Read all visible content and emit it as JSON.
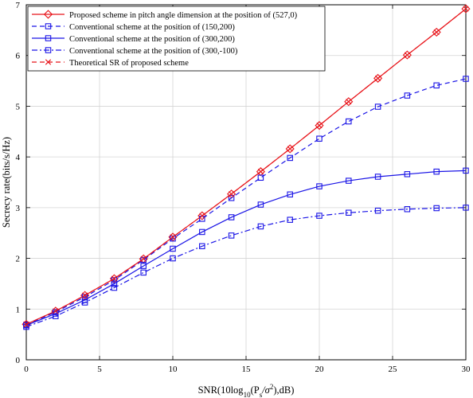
{
  "chart_data": {
    "type": "line",
    "xlabel_parts": [
      "SNR(10log",
      "10",
      "(P",
      "s",
      "/σ",
      "2",
      "),dB)"
    ],
    "ylabel": "Secrecy rate(bits/s/Hz)",
    "xlim": [
      0,
      30
    ],
    "ylim": [
      0,
      7
    ],
    "xticks": [
      0,
      5,
      10,
      15,
      20,
      25,
      30
    ],
    "yticks": [
      0,
      1,
      2,
      3,
      4,
      5,
      6,
      7
    ],
    "grid": true,
    "legend_position": "top-left",
    "x": [
      0,
      2,
      4,
      6,
      8,
      10,
      12,
      14,
      16,
      18,
      20,
      22,
      24,
      26,
      28,
      30
    ],
    "series": [
      {
        "name": "Proposed scheme in pitch angle dimension at the position of (527,0)",
        "color": "#e8141a",
        "dash": "solid",
        "marker": "diamond",
        "values": [
          0.7,
          0.96,
          1.27,
          1.6,
          1.99,
          2.42,
          2.84,
          3.27,
          3.71,
          4.16,
          4.62,
          5.09,
          5.55,
          6.01,
          6.46,
          6.92
        ]
      },
      {
        "name": "Conventional scheme at the position of (150,200)",
        "color": "#1a14e6",
        "dash": "dashed",
        "marker": "square",
        "values": [
          0.69,
          0.94,
          1.24,
          1.57,
          1.97,
          2.39,
          2.78,
          3.19,
          3.59,
          3.98,
          4.36,
          4.7,
          4.99,
          5.21,
          5.41,
          5.54
        ]
      },
      {
        "name": "Conventional scheme at the position of (300,200)",
        "color": "#1a14e6",
        "dash": "solid",
        "marker": "square",
        "values": [
          0.68,
          0.91,
          1.18,
          1.5,
          1.85,
          2.19,
          2.52,
          2.81,
          3.06,
          3.26,
          3.42,
          3.53,
          3.61,
          3.66,
          3.71,
          3.73
        ]
      },
      {
        "name": "Conventional scheme at the position of (300,-100)",
        "color": "#1a14e6",
        "dash": "dashdot",
        "marker": "square",
        "values": [
          0.65,
          0.86,
          1.13,
          1.42,
          1.72,
          2.0,
          2.24,
          2.45,
          2.63,
          2.76,
          2.84,
          2.9,
          2.94,
          2.97,
          2.99,
          3.0
        ]
      },
      {
        "name": "Theoretical SR of proposed scheme",
        "color": "#e8141a",
        "dash": "dashed",
        "marker": "x",
        "values": [
          0.7,
          0.96,
          1.27,
          1.6,
          1.99,
          2.42,
          2.84,
          3.27,
          3.71,
          4.16,
          4.62,
          5.09,
          5.55,
          6.01,
          6.46,
          6.92
        ]
      }
    ]
  }
}
